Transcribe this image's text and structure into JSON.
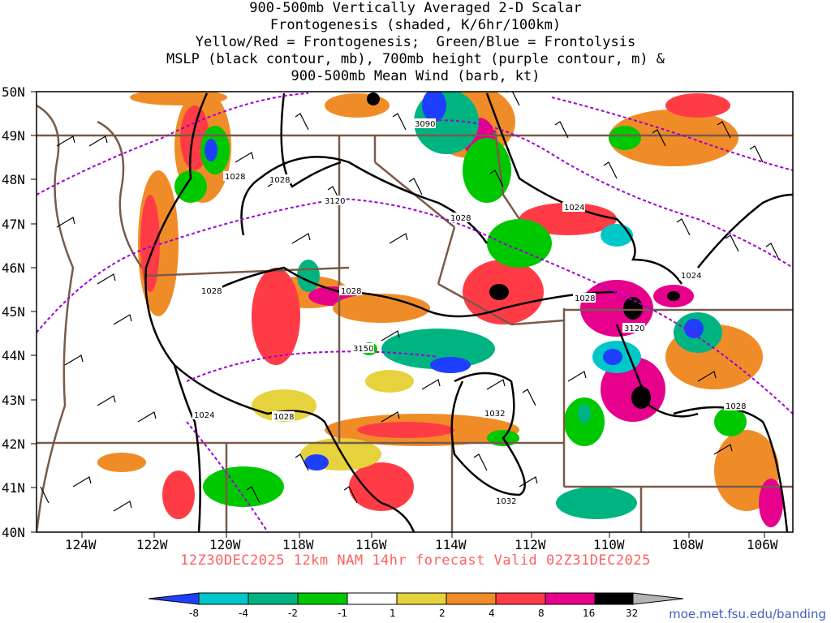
{
  "title": {
    "line1": "900-500mb Vertically Averaged 2-D Scalar",
    "line2": "Frontogenesis (shaded, K/6hr/100km)",
    "line3": "Yellow/Red = Frontogenesis;  Green/Blue = Frontolysis",
    "line4": "MSLP (black contour, mb), 700mb height (purple contour, m) &",
    "line5": "900-500mb Mean Wind (barb, kt)"
  },
  "axes": {
    "lat_labels": [
      "50N",
      "49N",
      "48N",
      "47N",
      "46N",
      "45N",
      "44N",
      "43N",
      "42N",
      "41N",
      "40N"
    ],
    "lon_labels": [
      "124W",
      "122W",
      "120W",
      "118W",
      "116W",
      "114W",
      "112W",
      "110W",
      "108W",
      "106W"
    ]
  },
  "contour_labels": {
    "mslp": [
      "1028",
      "1028",
      "1028",
      "1028",
      "1028",
      "1028",
      "1024",
      "1024",
      "1024",
      "1028",
      "1028",
      "1032",
      "1032"
    ],
    "height_700mb": [
      "3090",
      "3120",
      "3150",
      "3120"
    ]
  },
  "colors": {
    "mslp_contour": "#000000",
    "height_contour": "#a000d0",
    "border": "#7a5a48"
  },
  "colorbar": {
    "labels": [
      "-8",
      "-4",
      "-2",
      "-1",
      "1",
      "2",
      "4",
      "8",
      "16",
      "32"
    ],
    "colors": [
      "#1f3fff",
      "#00c8c8",
      "#00b482",
      "#00c800",
      "#ffffff",
      "#e6d23c",
      "#f08c28",
      "#ff3c46",
      "#e6008c",
      "#000000",
      "#b4b4b4"
    ]
  },
  "footer": "12Z30DEC2025 12km NAM 14hr forecast Valid 02Z31DEC2025",
  "credit": "moe.met.fsu.edu/banding"
}
